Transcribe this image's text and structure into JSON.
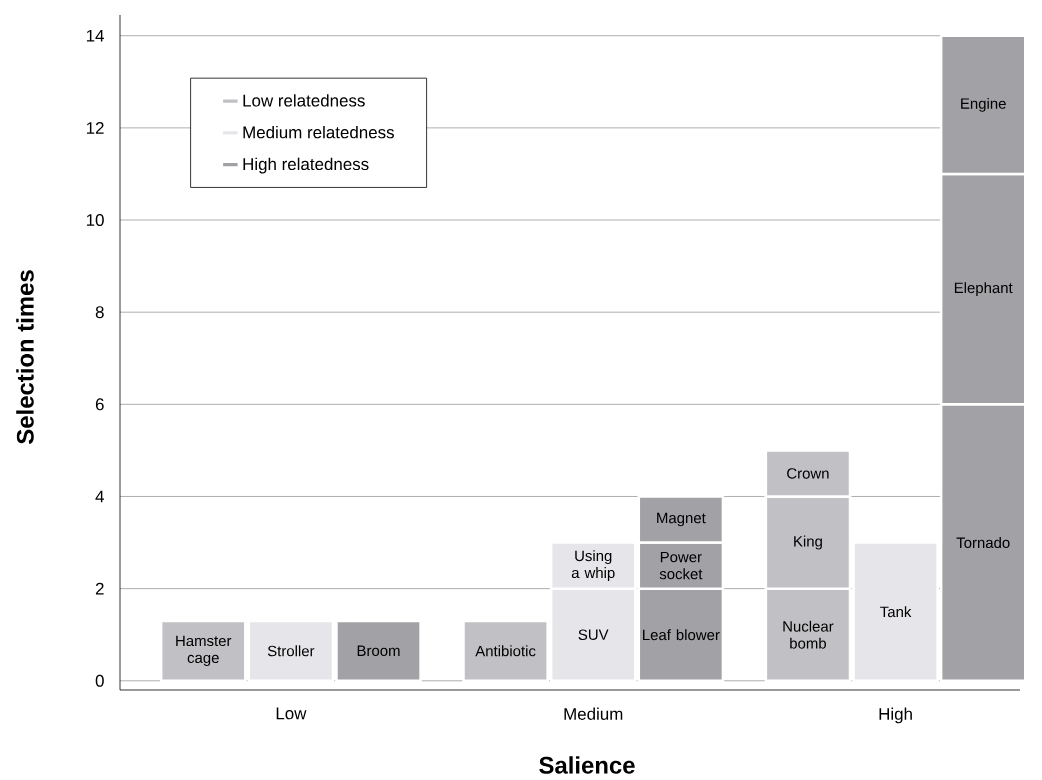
{
  "chart_data": {
    "type": "bar",
    "stacked": true,
    "xlabel": "Salience",
    "ylabel": "Selection times",
    "categories": [
      null,
      null,
      null,
      null,
      null,
      null,
      null,
      null,
      null
    ],
    "annotations": [
      "Low",
      "Medium",
      "High"
    ],
    "ylim": [
      -0.2,
      14.45
    ],
    "yticks": [
      0,
      2,
      4,
      6,
      8,
      10,
      12,
      14
    ],
    "grid": "y",
    "legend": "top left",
    "series": [
      {
        "name": "Low relatedness",
        "color": "#c1c1c5",
        "values": [
          1.3,
          null,
          null,
          1.3,
          null,
          null,
          2,
          null,
          null
        ],
        "value_labels": [
          "Hamster cage",
          null,
          null,
          "Antibiotic",
          null,
          null,
          "Nuclear bomb",
          null,
          null
        ]
      },
      {
        "name": "Medium relatedness",
        "color": "#e6e6ea",
        "values": [
          null,
          1.3,
          null,
          null,
          2,
          null,
          null,
          3,
          null
        ],
        "value_labels": [
          null,
          "Stroller",
          null,
          null,
          "SUV",
          null,
          null,
          "Tank",
          null
        ]
      },
      {
        "name": "High relatedness",
        "color": "#a2a1a5",
        "values": [
          null,
          null,
          1.3,
          null,
          null,
          2,
          null,
          null,
          6
        ],
        "value_labels": [
          null,
          null,
          "Broom",
          null,
          null,
          "Leaf blower",
          null,
          null,
          "Tornado"
        ]
      },
      {
        "color": "#c1c1c5",
        "values": [
          null,
          null,
          null,
          null,
          null,
          null,
          2,
          null,
          null
        ],
        "value_labels": [
          null,
          null,
          null,
          null,
          null,
          null,
          "King",
          null,
          null
        ]
      },
      {
        "color": "#e6e6ea",
        "values": [
          null,
          null,
          null,
          null,
          1,
          null,
          null,
          null,
          null
        ],
        "value_labels": [
          null,
          null,
          null,
          null,
          "Using a whip",
          null,
          null,
          null,
          null
        ]
      },
      {
        "color": "#a2a1a5",
        "values": [
          null,
          null,
          null,
          null,
          null,
          1,
          null,
          null,
          5
        ],
        "value_labels": [
          null,
          null,
          null,
          null,
          null,
          "Power socket",
          null,
          null,
          "Elephant"
        ]
      },
      {
        "color": "#c1c1c5",
        "values": [
          null,
          null,
          null,
          null,
          null,
          null,
          1,
          null,
          null
        ],
        "value_labels": [
          null,
          null,
          null,
          null,
          null,
          null,
          "Crown",
          null,
          null
        ]
      },
      {
        "color": "#a2a1a5",
        "values": [
          null,
          null,
          null,
          null,
          null,
          1,
          null,
          null,
          3
        ],
        "value_labels": [
          null,
          null,
          null,
          null,
          null,
          "Magnet",
          null,
          null,
          "Engine"
        ]
      }
    ]
  }
}
